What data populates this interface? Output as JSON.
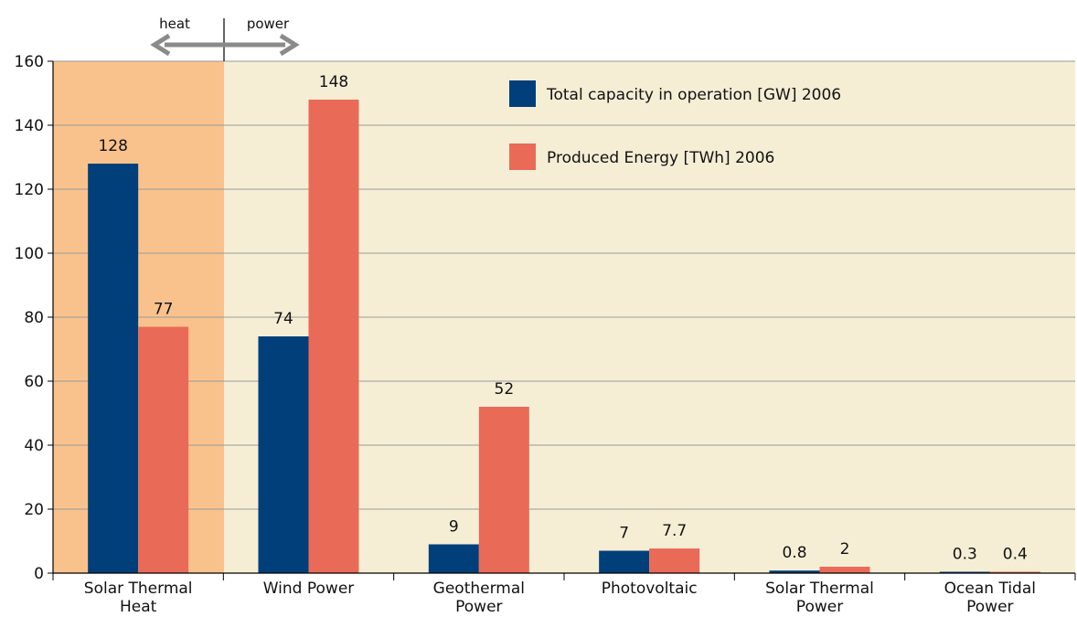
{
  "chart_data": {
    "type": "bar",
    "title": "",
    "xlabel": "",
    "ylabel": "",
    "ylim": [
      0,
      160
    ],
    "yticks": [
      0,
      20,
      40,
      60,
      80,
      100,
      120,
      140,
      160
    ],
    "grid": true,
    "legend_position": "top-right",
    "categories": [
      [
        "Solar Thermal",
        "Heat"
      ],
      [
        "Wind Power"
      ],
      [
        "Geothermal",
        "Power"
      ],
      [
        "Photovoltaic"
      ],
      [
        "Solar Thermal",
        "Power"
      ],
      [
        "Ocean Tidal",
        "Power"
      ]
    ],
    "series": [
      {
        "name": "Total capacity in operation [GW] 2006",
        "color": "#003f7a",
        "values": [
          128,
          74,
          9,
          7,
          0.8,
          0.3
        ],
        "labels": [
          "128",
          "74",
          "9",
          "7",
          "0.8",
          "0.3"
        ]
      },
      {
        "name": "Produced Energy [TWh] 2006",
        "color": "#ea6a58",
        "values": [
          77,
          148,
          52,
          7.7,
          2,
          0.4
        ],
        "labels": [
          "77",
          "148",
          "52",
          "7.7",
          "2",
          "0.4"
        ]
      }
    ],
    "annotations": {
      "heat": "heat",
      "power": "power"
    },
    "colors": {
      "heat_region": "#f9c28c",
      "power_region": "#f5eed5",
      "arrow": "#8a8a8a",
      "grid": "#9a9a9a"
    }
  }
}
